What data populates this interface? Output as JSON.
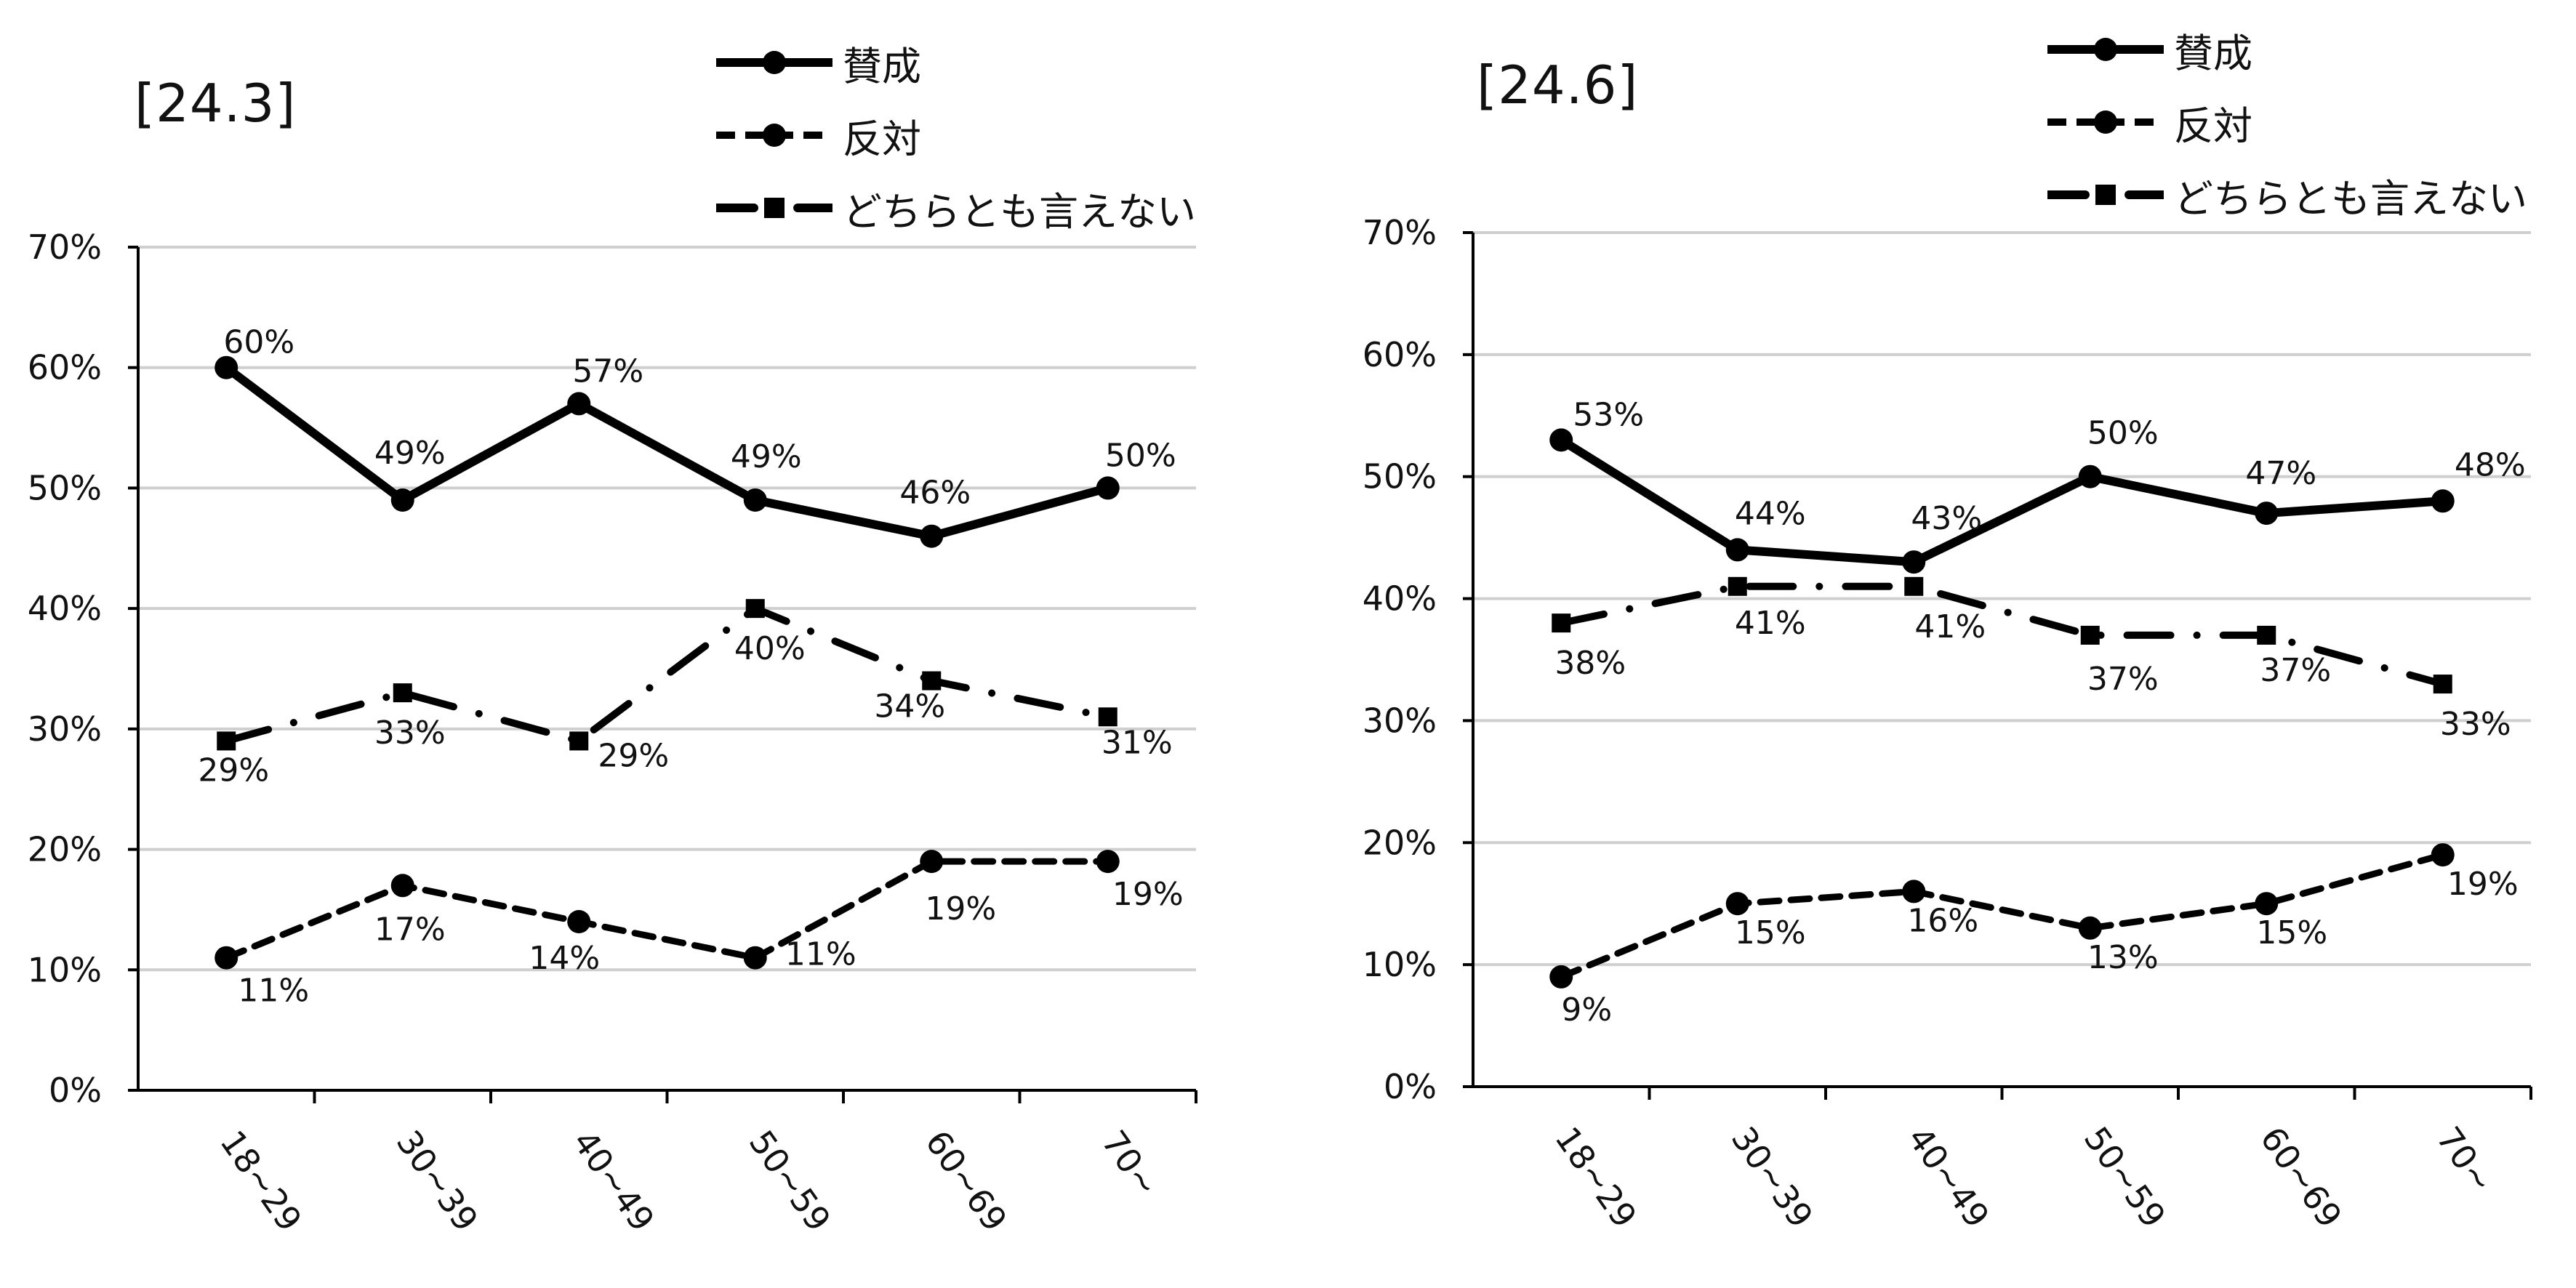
{
  "chart_data": [
    {
      "type": "line",
      "title": "[24.3]",
      "categories": [
        "18~29",
        "30~39",
        "40~49",
        "50~59",
        "60~69",
        "70~"
      ],
      "ylim": [
        0,
        70
      ],
      "yticks": [
        "0%",
        "10%",
        "20%",
        "30%",
        "40%",
        "50%",
        "60%",
        "70%"
      ],
      "grid": true,
      "legend": "top-right",
      "series": [
        {
          "name": "賛成",
          "style": "solid-circle",
          "values": [
            60,
            49,
            57,
            49,
            46,
            50
          ],
          "labels": [
            "60%",
            "49%",
            "57%",
            "49%",
            "46%",
            "50%"
          ]
        },
        {
          "name": "反対",
          "style": "dashed-circle",
          "values": [
            11,
            17,
            14,
            11,
            19,
            19
          ],
          "labels": [
            "11%",
            "17%",
            "14%",
            "11%",
            "19%",
            "19%"
          ]
        },
        {
          "name": "どちらとも言えない",
          "style": "dashdot-square",
          "values": [
            29,
            33,
            29,
            40,
            34,
            31
          ],
          "labels": [
            "29%",
            "33%",
            "29%",
            "40%",
            "34%",
            "31%"
          ]
        }
      ]
    },
    {
      "type": "line",
      "title": "[24.6]",
      "categories": [
        "18~29",
        "30~39",
        "40~49",
        "50~59",
        "60~69",
        "70~"
      ],
      "ylim": [
        0,
        70
      ],
      "yticks": [
        "0%",
        "10%",
        "20%",
        "30%",
        "40%",
        "50%",
        "60%",
        "70%"
      ],
      "grid": true,
      "legend": "top-right",
      "series": [
        {
          "name": "賛成",
          "style": "solid-circle",
          "values": [
            53,
            44,
            43,
            50,
            47,
            48
          ],
          "labels": [
            "53%",
            "44%",
            "43%",
            "50%",
            "47%",
            "48%"
          ]
        },
        {
          "name": "反対",
          "style": "dashed-circle",
          "values": [
            9,
            15,
            16,
            13,
            15,
            19
          ],
          "labels": [
            "9%",
            "15%",
            "16%",
            "13%",
            "15%",
            "19%"
          ]
        },
        {
          "name": "どちらとも言えない",
          "style": "dashdot-square",
          "values": [
            38,
            41,
            41,
            37,
            37,
            33
          ],
          "labels": [
            "38%",
            "41%",
            "41%",
            "37%",
            "37%",
            "33%"
          ]
        }
      ]
    }
  ]
}
